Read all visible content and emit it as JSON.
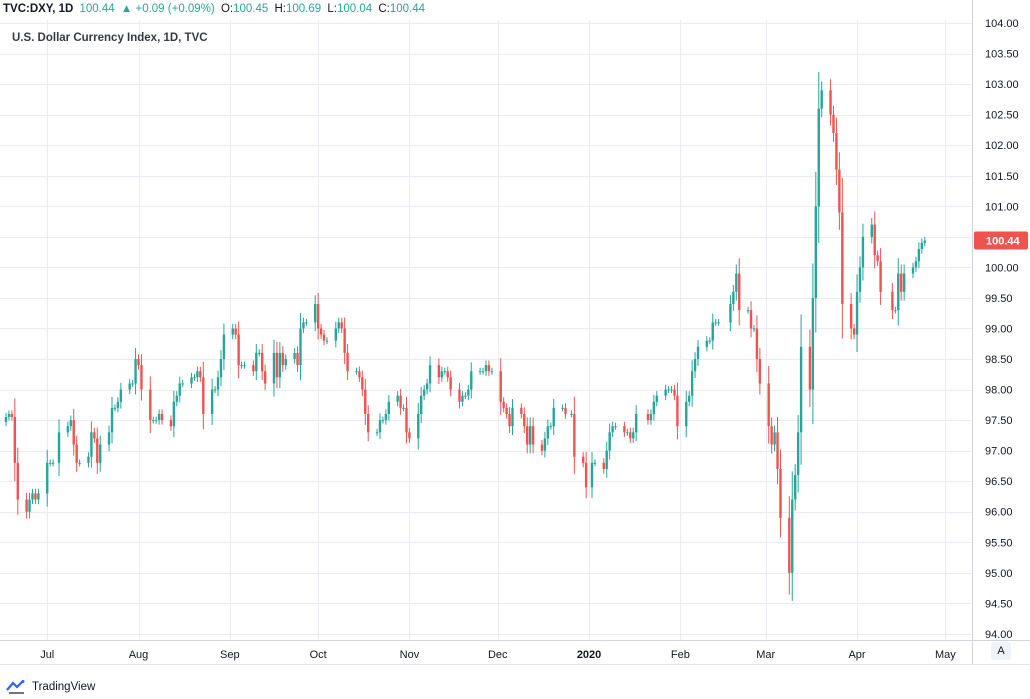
{
  "header": {
    "symbol": "TVC:DXY, 1D",
    "last": "100.44",
    "arrow": "▲",
    "change": "+0.09 (+0.09%)",
    "o_label": "O:",
    "o_value": "100.45",
    "h_label": "H:",
    "h_value": "100.69",
    "l_label": "L:",
    "l_value": "100.04",
    "c_label": "C:",
    "c_value": "100.44"
  },
  "subtitle": "U.S. Dollar Currency Index, 1D, TVC",
  "footer": {
    "brand": "TradingView"
  },
  "auto_button": "A",
  "colors": {
    "up": "#26a69a",
    "down": "#ef5350",
    "grid": "#e9edf3",
    "price_tag": "#ef5350"
  },
  "chart_data": {
    "type": "candlestick",
    "title": "U.S. Dollar Currency Index, 1D, TVC",
    "ylim": [
      93.9,
      104.05
    ],
    "y_ticks": [
      "94.00",
      "94.50",
      "95.00",
      "95.50",
      "96.00",
      "96.50",
      "97.00",
      "97.50",
      "98.00",
      "98.50",
      "99.00",
      "99.50",
      "100.00",
      "100.50",
      "101.00",
      "101.50",
      "102.00",
      "102.50",
      "103.00",
      "103.50",
      "104.00"
    ],
    "x_ticks": [
      {
        "label": "Jul",
        "date": "2019-07-01"
      },
      {
        "label": "Aug",
        "date": "2019-08-01"
      },
      {
        "label": "Sep",
        "date": "2019-09-01"
      },
      {
        "label": "Oct",
        "date": "2019-10-01"
      },
      {
        "label": "Nov",
        "date": "2019-11-01"
      },
      {
        "label": "Dec",
        "date": "2019-12-01"
      },
      {
        "label": "2020",
        "date": "2020-01-01"
      },
      {
        "label": "Feb",
        "date": "2020-02-01"
      },
      {
        "label": "Mar",
        "date": "2020-03-01"
      },
      {
        "label": "Apr",
        "date": "2020-04-01"
      },
      {
        "label": "May",
        "date": "2020-05-01"
      }
    ],
    "x_range": [
      "2019-06-17",
      "2020-05-08"
    ],
    "last_price": "100.44",
    "closes": [
      {
        "date": "2019-06-17",
        "close": 97.55
      },
      {
        "date": "2019-06-18",
        "close": 97.6
      },
      {
        "date": "2019-06-19",
        "close": 97.55
      },
      {
        "date": "2019-06-20",
        "close": 96.8
      },
      {
        "date": "2019-06-21",
        "close": 96.2
      },
      {
        "date": "2019-06-24",
        "close": 96.0
      },
      {
        "date": "2019-06-25",
        "close": 96.2
      },
      {
        "date": "2019-06-26",
        "close": 96.3
      },
      {
        "date": "2019-06-27",
        "close": 96.2
      },
      {
        "date": "2019-06-28",
        "close": 96.3
      },
      {
        "date": "2019-07-01",
        "close": 96.8
      },
      {
        "date": "2019-07-02",
        "close": 96.8
      },
      {
        "date": "2019-07-03",
        "close": 96.8
      },
      {
        "date": "2019-07-05",
        "close": 97.3
      },
      {
        "date": "2019-07-08",
        "close": 97.4
      },
      {
        "date": "2019-07-09",
        "close": 97.5
      },
      {
        "date": "2019-07-10",
        "close": 97.1
      },
      {
        "date": "2019-07-11",
        "close": 96.8
      },
      {
        "date": "2019-07-12",
        "close": 96.8
      },
      {
        "date": "2019-07-15",
        "close": 96.9
      },
      {
        "date": "2019-07-16",
        "close": 97.3
      },
      {
        "date": "2019-07-17",
        "close": 97.2
      },
      {
        "date": "2019-07-18",
        "close": 96.8
      },
      {
        "date": "2019-07-19",
        "close": 97.1
      },
      {
        "date": "2019-07-22",
        "close": 97.3
      },
      {
        "date": "2019-07-23",
        "close": 97.7
      },
      {
        "date": "2019-07-24",
        "close": 97.7
      },
      {
        "date": "2019-07-25",
        "close": 97.8
      },
      {
        "date": "2019-07-26",
        "close": 98.0
      },
      {
        "date": "2019-07-29",
        "close": 98.1
      },
      {
        "date": "2019-07-30",
        "close": 98.1
      },
      {
        "date": "2019-07-31",
        "close": 98.5
      },
      {
        "date": "2019-08-01",
        "close": 98.4
      },
      {
        "date": "2019-08-02",
        "close": 98.0
      },
      {
        "date": "2019-08-05",
        "close": 97.5
      },
      {
        "date": "2019-08-06",
        "close": 97.5
      },
      {
        "date": "2019-08-07",
        "close": 97.5
      },
      {
        "date": "2019-08-08",
        "close": 97.6
      },
      {
        "date": "2019-08-09",
        "close": 97.5
      },
      {
        "date": "2019-08-12",
        "close": 97.4
      },
      {
        "date": "2019-08-13",
        "close": 97.8
      },
      {
        "date": "2019-08-14",
        "close": 97.9
      },
      {
        "date": "2019-08-15",
        "close": 98.1
      },
      {
        "date": "2019-08-16",
        "close": 98.1
      },
      {
        "date": "2019-08-19",
        "close": 98.2
      },
      {
        "date": "2019-08-20",
        "close": 98.2
      },
      {
        "date": "2019-08-21",
        "close": 98.3
      },
      {
        "date": "2019-08-22",
        "close": 98.2
      },
      {
        "date": "2019-08-23",
        "close": 97.6
      },
      {
        "date": "2019-08-26",
        "close": 98.0
      },
      {
        "date": "2019-08-27",
        "close": 98.0
      },
      {
        "date": "2019-08-28",
        "close": 98.2
      },
      {
        "date": "2019-08-29",
        "close": 98.5
      },
      {
        "date": "2019-08-30",
        "close": 98.9
      },
      {
        "date": "2019-09-02",
        "close": 99.0
      },
      {
        "date": "2019-09-03",
        "close": 98.9
      },
      {
        "date": "2019-09-04",
        "close": 98.4
      },
      {
        "date": "2019-09-05",
        "close": 98.4
      },
      {
        "date": "2019-09-06",
        "close": 98.4
      },
      {
        "date": "2019-09-09",
        "close": 98.3
      },
      {
        "date": "2019-09-10",
        "close": 98.6
      },
      {
        "date": "2019-09-11",
        "close": 98.6
      },
      {
        "date": "2019-09-12",
        "close": 98.3
      },
      {
        "date": "2019-09-13",
        "close": 98.1
      },
      {
        "date": "2019-09-16",
        "close": 98.6
      },
      {
        "date": "2019-09-17",
        "close": 98.2
      },
      {
        "date": "2019-09-18",
        "close": 98.6
      },
      {
        "date": "2019-09-19",
        "close": 98.4
      },
      {
        "date": "2019-09-20",
        "close": 98.5
      },
      {
        "date": "2019-09-23",
        "close": 98.6
      },
      {
        "date": "2019-09-24",
        "close": 98.4
      },
      {
        "date": "2019-09-25",
        "close": 99.0
      },
      {
        "date": "2019-09-26",
        "close": 99.1
      },
      {
        "date": "2019-09-27",
        "close": 99.1
      },
      {
        "date": "2019-09-30",
        "close": 99.4
      },
      {
        "date": "2019-10-01",
        "close": 99.0
      },
      {
        "date": "2019-10-02",
        "close": 98.9
      },
      {
        "date": "2019-10-03",
        "close": 98.8
      },
      {
        "date": "2019-10-04",
        "close": 98.8
      },
      {
        "date": "2019-10-07",
        "close": 99.0
      },
      {
        "date": "2019-10-08",
        "close": 99.1
      },
      {
        "date": "2019-10-09",
        "close": 99.0
      },
      {
        "date": "2019-10-10",
        "close": 98.6
      },
      {
        "date": "2019-10-11",
        "close": 98.3
      },
      {
        "date": "2019-10-14",
        "close": 98.3
      },
      {
        "date": "2019-10-15",
        "close": 98.2
      },
      {
        "date": "2019-10-16",
        "close": 98.0
      },
      {
        "date": "2019-10-17",
        "close": 97.6
      },
      {
        "date": "2019-10-18",
        "close": 97.3
      },
      {
        "date": "2019-10-21",
        "close": 97.3
      },
      {
        "date": "2019-10-22",
        "close": 97.5
      },
      {
        "date": "2019-10-23",
        "close": 97.5
      },
      {
        "date": "2019-10-24",
        "close": 97.6
      },
      {
        "date": "2019-10-25",
        "close": 97.8
      },
      {
        "date": "2019-10-28",
        "close": 97.9
      },
      {
        "date": "2019-10-29",
        "close": 97.7
      },
      {
        "date": "2019-10-30",
        "close": 97.7
      },
      {
        "date": "2019-10-31",
        "close": 97.3
      },
      {
        "date": "2019-11-01",
        "close": 97.2
      },
      {
        "date": "2019-11-04",
        "close": 97.6
      },
      {
        "date": "2019-11-05",
        "close": 97.9
      },
      {
        "date": "2019-11-06",
        "close": 98.0
      },
      {
        "date": "2019-11-07",
        "close": 98.1
      },
      {
        "date": "2019-11-08",
        "close": 98.4
      },
      {
        "date": "2019-11-11",
        "close": 98.2
      },
      {
        "date": "2019-11-12",
        "close": 98.3
      },
      {
        "date": "2019-11-13",
        "close": 98.3
      },
      {
        "date": "2019-11-14",
        "close": 98.2
      },
      {
        "date": "2019-11-15",
        "close": 98.0
      },
      {
        "date": "2019-11-18",
        "close": 97.8
      },
      {
        "date": "2019-11-19",
        "close": 97.9
      },
      {
        "date": "2019-11-20",
        "close": 97.9
      },
      {
        "date": "2019-11-21",
        "close": 98.0
      },
      {
        "date": "2019-11-22",
        "close": 98.3
      },
      {
        "date": "2019-11-25",
        "close": 98.3
      },
      {
        "date": "2019-11-26",
        "close": 98.3
      },
      {
        "date": "2019-11-27",
        "close": 98.4
      },
      {
        "date": "2019-11-28",
        "close": 98.3
      },
      {
        "date": "2019-11-29",
        "close": 98.3
      },
      {
        "date": "2019-12-02",
        "close": 97.8
      },
      {
        "date": "2019-12-03",
        "close": 97.7
      },
      {
        "date": "2019-12-04",
        "close": 97.6
      },
      {
        "date": "2019-12-05",
        "close": 97.4
      },
      {
        "date": "2019-12-06",
        "close": 97.7
      },
      {
        "date": "2019-12-09",
        "close": 97.6
      },
      {
        "date": "2019-12-10",
        "close": 97.4
      },
      {
        "date": "2019-12-11",
        "close": 97.1
      },
      {
        "date": "2019-12-12",
        "close": 97.4
      },
      {
        "date": "2019-12-13",
        "close": 97.1
      },
      {
        "date": "2019-12-16",
        "close": 97.0
      },
      {
        "date": "2019-12-17",
        "close": 97.2
      },
      {
        "date": "2019-12-18",
        "close": 97.4
      },
      {
        "date": "2019-12-19",
        "close": 97.4
      },
      {
        "date": "2019-12-20",
        "close": 97.7
      },
      {
        "date": "2019-12-23",
        "close": 97.7
      },
      {
        "date": "2019-12-24",
        "close": 97.6
      },
      {
        "date": "2019-12-26",
        "close": 97.6
      },
      {
        "date": "2019-12-27",
        "close": 96.9
      },
      {
        "date": "2019-12-30",
        "close": 96.8
      },
      {
        "date": "2019-12-31",
        "close": 96.4
      },
      {
        "date": "2020-01-02",
        "close": 96.8
      },
      {
        "date": "2020-01-03",
        "close": 96.8
      },
      {
        "date": "2020-01-06",
        "close": 96.7
      },
      {
        "date": "2020-01-07",
        "close": 97.0
      },
      {
        "date": "2020-01-08",
        "close": 97.3
      },
      {
        "date": "2020-01-09",
        "close": 97.4
      },
      {
        "date": "2020-01-10",
        "close": 97.4
      },
      {
        "date": "2020-01-13",
        "close": 97.3
      },
      {
        "date": "2020-01-14",
        "close": 97.3
      },
      {
        "date": "2020-01-15",
        "close": 97.2
      },
      {
        "date": "2020-01-16",
        "close": 97.3
      },
      {
        "date": "2020-01-17",
        "close": 97.6
      },
      {
        "date": "2020-01-21",
        "close": 97.5
      },
      {
        "date": "2020-01-22",
        "close": 97.6
      },
      {
        "date": "2020-01-23",
        "close": 97.8
      },
      {
        "date": "2020-01-24",
        "close": 97.9
      },
      {
        "date": "2020-01-27",
        "close": 98.0
      },
      {
        "date": "2020-01-28",
        "close": 98.0
      },
      {
        "date": "2020-01-29",
        "close": 98.0
      },
      {
        "date": "2020-01-30",
        "close": 97.9
      },
      {
        "date": "2020-01-31",
        "close": 97.4
      },
      {
        "date": "2020-02-03",
        "close": 97.8
      },
      {
        "date": "2020-02-04",
        "close": 97.9
      },
      {
        "date": "2020-02-05",
        "close": 98.3
      },
      {
        "date": "2020-02-06",
        "close": 98.5
      },
      {
        "date": "2020-02-07",
        "close": 98.7
      },
      {
        "date": "2020-02-10",
        "close": 98.8
      },
      {
        "date": "2020-02-11",
        "close": 98.8
      },
      {
        "date": "2020-02-12",
        "close": 99.1
      },
      {
        "date": "2020-02-13",
        "close": 99.1
      },
      {
        "date": "2020-02-14",
        "close": 99.1
      },
      {
        "date": "2020-02-18",
        "close": 99.4
      },
      {
        "date": "2020-02-19",
        "close": 99.6
      },
      {
        "date": "2020-02-20",
        "close": 99.9
      },
      {
        "date": "2020-02-21",
        "close": 99.3
      },
      {
        "date": "2020-02-24",
        "close": 99.3
      },
      {
        "date": "2020-02-25",
        "close": 99.0
      },
      {
        "date": "2020-02-26",
        "close": 99.0
      },
      {
        "date": "2020-02-27",
        "close": 98.5
      },
      {
        "date": "2020-02-28",
        "close": 98.1
      },
      {
        "date": "2020-03-02",
        "close": 97.4
      },
      {
        "date": "2020-03-03",
        "close": 97.1
      },
      {
        "date": "2020-03-04",
        "close": 97.3
      },
      {
        "date": "2020-03-05",
        "close": 96.7
      },
      {
        "date": "2020-03-06",
        "close": 95.9
      },
      {
        "date": "2020-03-09",
        "close": 95.0
      },
      {
        "date": "2020-03-10",
        "close": 96.2
      },
      {
        "date": "2020-03-11",
        "close": 96.6
      },
      {
        "date": "2020-03-12",
        "close": 97.3
      },
      {
        "date": "2020-03-13",
        "close": 98.7
      },
      {
        "date": "2020-03-16",
        "close": 98.0
      },
      {
        "date": "2020-03-17",
        "close": 99.5
      },
      {
        "date": "2020-03-18",
        "close": 101.0
      },
      {
        "date": "2020-03-19",
        "close": 102.6
      },
      {
        "date": "2020-03-20",
        "close": 102.9
      },
      {
        "date": "2020-03-23",
        "close": 102.5
      },
      {
        "date": "2020-03-24",
        "close": 102.2
      },
      {
        "date": "2020-03-25",
        "close": 101.6
      },
      {
        "date": "2020-03-26",
        "close": 100.9
      },
      {
        "date": "2020-03-27",
        "close": 99.4
      },
      {
        "date": "2020-03-30",
        "close": 99.0
      },
      {
        "date": "2020-03-31",
        "close": 98.9
      },
      {
        "date": "2020-04-01",
        "close": 99.6
      },
      {
        "date": "2020-04-02",
        "close": 100.0
      },
      {
        "date": "2020-04-03",
        "close": 100.5
      },
      {
        "date": "2020-04-06",
        "close": 100.7
      },
      {
        "date": "2020-04-07",
        "close": 100.2
      },
      {
        "date": "2020-04-08",
        "close": 100.1
      },
      {
        "date": "2020-04-09",
        "close": 99.6
      },
      {
        "date": "2020-04-13",
        "close": 99.3
      },
      {
        "date": "2020-04-14",
        "close": 99.3
      },
      {
        "date": "2020-04-15",
        "close": 99.9
      },
      {
        "date": "2020-04-16",
        "close": 99.6
      },
      {
        "date": "2020-04-17",
        "close": 99.9
      },
      {
        "date": "2020-04-20",
        "close": 100.0
      },
      {
        "date": "2020-04-21",
        "close": 100.1
      },
      {
        "date": "2020-04-22",
        "close": 100.3
      },
      {
        "date": "2020-04-23",
        "close": 100.4
      },
      {
        "date": "2020-04-24",
        "close": 100.44
      }
    ]
  }
}
